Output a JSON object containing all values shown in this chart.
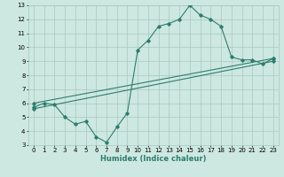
{
  "line1_x": [
    0,
    1,
    2,
    3,
    4,
    5,
    6,
    7,
    8,
    9,
    10,
    11,
    12,
    13,
    14,
    15,
    16,
    17,
    18,
    19,
    20,
    21,
    22,
    23
  ],
  "line1_y": [
    5.7,
    6.0,
    5.9,
    5.0,
    4.5,
    4.7,
    3.6,
    3.2,
    4.3,
    5.3,
    9.8,
    10.5,
    11.5,
    11.7,
    12.0,
    13.0,
    12.3,
    12.0,
    11.5,
    9.3,
    9.1,
    9.1,
    8.8,
    9.2
  ],
  "line2_x": [
    0,
    23
  ],
  "line2_y": [
    6.0,
    9.2
  ],
  "line3_x": [
    0,
    23
  ],
  "line3_y": [
    5.6,
    9.0
  ],
  "line_color": "#2e7d6e",
  "bg_color": "#cde8e0",
  "grid_color": "#a8c8c0",
  "xlabel": "Humidex (Indice chaleur)",
  "xlim": [
    -0.5,
    23.5
  ],
  "ylim": [
    3,
    13
  ],
  "xticks": [
    0,
    1,
    2,
    3,
    4,
    5,
    6,
    7,
    8,
    9,
    10,
    11,
    12,
    13,
    14,
    15,
    16,
    17,
    18,
    19,
    20,
    21,
    22,
    23
  ],
  "yticks": [
    3,
    4,
    5,
    6,
    7,
    8,
    9,
    10,
    11,
    12,
    13
  ],
  "xlabel_fontsize": 6,
  "tick_fontsize": 5,
  "marker": "D",
  "markersize": 1.8,
  "linewidth": 0.8
}
